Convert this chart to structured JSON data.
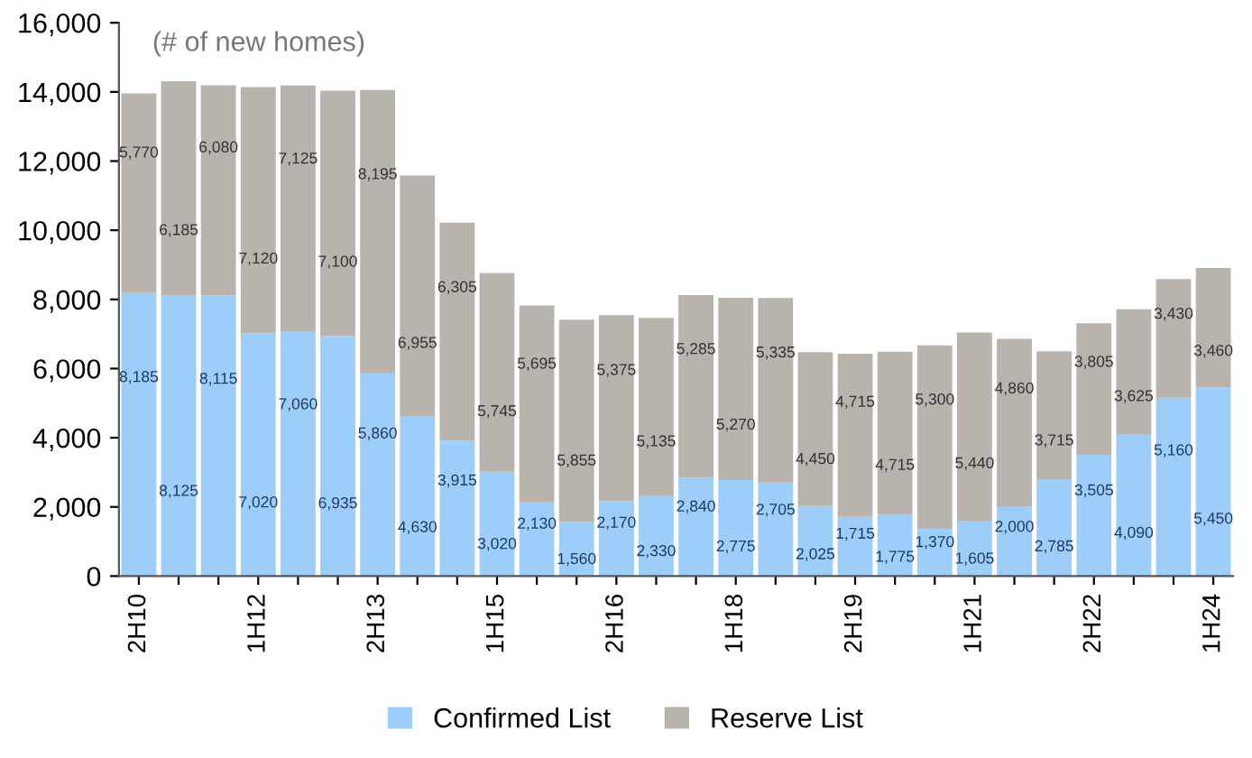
{
  "chart_data": {
    "type": "bar",
    "stacked": true,
    "legend": "bottom",
    "grid": false,
    "annotations": [
      "(# of new homes)"
    ],
    "categories": [
      "2H10",
      null,
      null,
      "1H12",
      null,
      null,
      "2H13",
      null,
      null,
      "1H15",
      null,
      null,
      "2H16",
      null,
      null,
      "1H18",
      null,
      null,
      "2H19",
      null,
      null,
      "1H21",
      null,
      null,
      "2H22",
      null,
      null,
      "1H24"
    ],
    "series": [
      {
        "name": "Confirmed List",
        "color": "#9dcdf9",
        "values": [
          8185,
          8125,
          8115,
          7020,
          7060,
          6935,
          5860,
          4630,
          3915,
          3020,
          2130,
          1560,
          2170,
          2330,
          2840,
          2775,
          2705,
          2025,
          1715,
          1775,
          1370,
          1605,
          2000,
          2785,
          3505,
          4090,
          5160,
          5450
        ],
        "value_labels": [
          "8,185",
          "8,125",
          "8,115",
          "7,020",
          "7,060",
          "6,935",
          "5,860",
          "4,630",
          "3,915",
          "3,020",
          "2,130",
          "1,560",
          "2,170",
          "2,330",
          "2,840",
          "2,775",
          "2,705",
          "2,025",
          "1,715",
          "1,775",
          "1,370",
          "1,605",
          "2,000",
          "2,785",
          "3,505",
          "4,090",
          "5,160",
          "5,450"
        ]
      },
      {
        "name": "Reserve List",
        "color": "#b8b3ad",
        "values": [
          5770,
          6185,
          6080,
          7120,
          7125,
          7100,
          8195,
          6955,
          6305,
          5745,
          5695,
          5855,
          5375,
          5135,
          5285,
          5270,
          5335,
          4450,
          4715,
          4715,
          5300,
          5440,
          4860,
          3715,
          3805,
          3625,
          3430,
          3460
        ],
        "value_labels": [
          "5,770",
          "6,185",
          "6,080",
          "7,120",
          "7,125",
          "7,100",
          "8,195",
          "6,955",
          "6,305",
          "5,745",
          "5,695",
          "5,855",
          "5,375",
          "5,135",
          "5,285",
          "5,270",
          "5,335",
          "4,450",
          "4,715",
          "4,715",
          "5,300",
          "5,440",
          "4,860",
          "3,715",
          "3,805",
          "3,625",
          "3,430",
          "3,460"
        ]
      }
    ],
    "ylim": [
      0,
      16000
    ],
    "yticks": [
      {
        "value": 0,
        "label": "0"
      },
      {
        "value": 2000,
        "label": "2,000"
      },
      {
        "value": 4000,
        "label": "4,000"
      },
      {
        "value": 6000,
        "label": "6,000"
      },
      {
        "value": 8000,
        "label": "8,000"
      },
      {
        "value": 10000,
        "label": "10,000"
      },
      {
        "value": 12000,
        "label": "12,000"
      },
      {
        "value": 14000,
        "label": "14,000"
      },
      {
        "value": 16000,
        "label": "16,000"
      }
    ]
  }
}
